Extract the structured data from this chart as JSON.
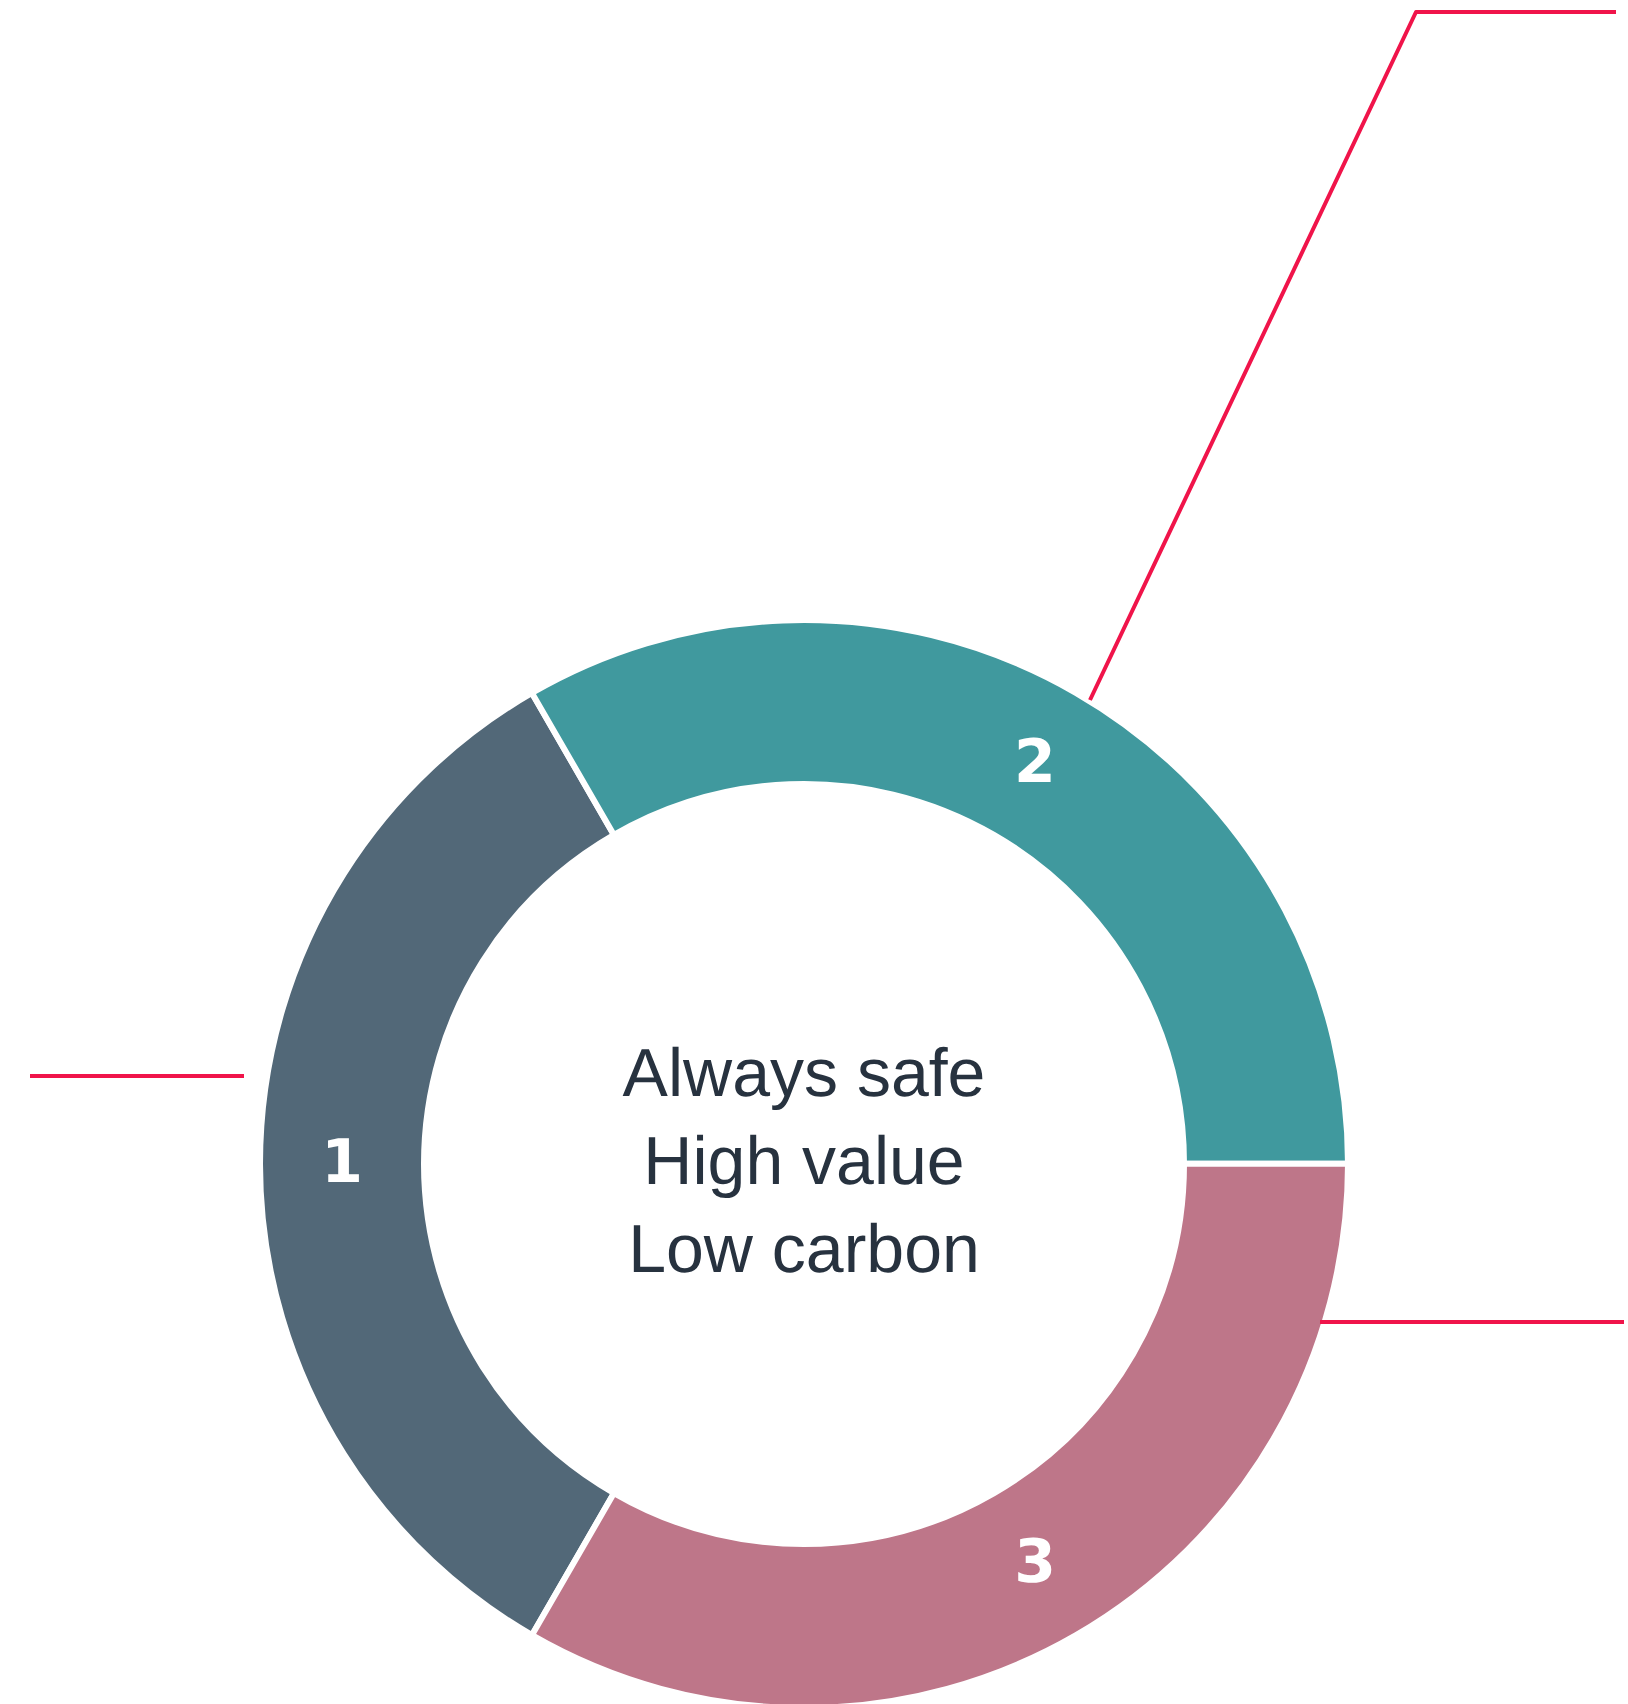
{
  "chart_data": {
    "type": "donut",
    "categories": [
      "1",
      "2",
      "3"
    ],
    "values": [
      33.33,
      33.33,
      33.34
    ],
    "colors": [
      "#526878",
      "#40999e",
      "#be7689"
    ],
    "data_labels": false,
    "annotations": [
      "Always safe",
      "High value",
      "Low carbon"
    ]
  }
}
